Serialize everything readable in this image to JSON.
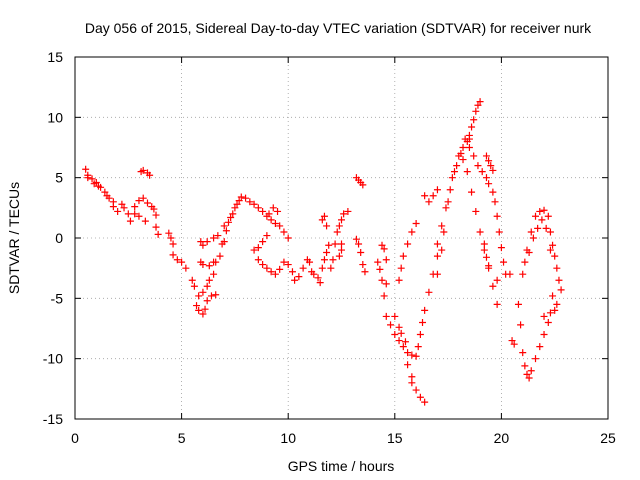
{
  "chart_data": {
    "type": "scatter",
    "title": "Day 056 of 2015, Sidereal Day-to-day VTEC variation (SDTVAR) for receiver nurk",
    "xlabel": "GPS time / hours",
    "ylabel": "SDTVAR / TECUs",
    "xlim": [
      0,
      25
    ],
    "ylim": [
      -15,
      15
    ],
    "xticks": [
      0,
      5,
      10,
      15,
      20,
      25
    ],
    "yticks": [
      -15,
      -10,
      -5,
      0,
      5,
      10,
      15
    ],
    "grid": true,
    "marker": "+",
    "color": "#ff0000",
    "series": [
      {
        "name": "SDTVAR",
        "points": [
          [
            0.5,
            5.7
          ],
          [
            0.6,
            5.2
          ],
          [
            0.8,
            4.9
          ],
          [
            1.0,
            4.6
          ],
          [
            1.2,
            4.2
          ],
          [
            1.4,
            3.8
          ],
          [
            1.6,
            3.3
          ],
          [
            1.8,
            2.6
          ],
          [
            2.0,
            2.2
          ],
          [
            0.6,
            5.0
          ],
          [
            0.9,
            4.5
          ],
          [
            1.1,
            4.3
          ],
          [
            1.5,
            3.5
          ],
          [
            1.8,
            3.0
          ],
          [
            2.2,
            2.8
          ],
          [
            2.3,
            2.5
          ],
          [
            2.5,
            2.0
          ],
          [
            2.6,
            1.4
          ],
          [
            2.8,
            2.6
          ],
          [
            3.0,
            3.1
          ],
          [
            3.2,
            3.3
          ],
          [
            3.4,
            2.9
          ],
          [
            3.6,
            2.6
          ],
          [
            3.1,
            5.5
          ],
          [
            3.2,
            5.6
          ],
          [
            3.4,
            5.4
          ],
          [
            3.5,
            5.2
          ],
          [
            2.8,
            2.0
          ],
          [
            3.0,
            1.8
          ],
          [
            3.3,
            1.4
          ],
          [
            3.7,
            2.4
          ],
          [
            3.8,
            1.9
          ],
          [
            3.8,
            0.9
          ],
          [
            3.9,
            0.3
          ],
          [
            4.4,
            0.4
          ],
          [
            4.5,
            0.0
          ],
          [
            4.6,
            -0.5
          ],
          [
            4.6,
            -1.4
          ],
          [
            4.8,
            -1.8
          ],
          [
            5.0,
            -2.0
          ],
          [
            5.2,
            -2.5
          ],
          [
            5.5,
            -3.5
          ],
          [
            5.6,
            -4.0
          ],
          [
            5.8,
            -4.8
          ],
          [
            5.7,
            -5.6
          ],
          [
            5.8,
            -6.0
          ],
          [
            6.0,
            -6.3
          ],
          [
            6.1,
            -5.9
          ],
          [
            6.2,
            -5.2
          ],
          [
            6.4,
            -4.8
          ],
          [
            6.6,
            -4.7
          ],
          [
            6.0,
            -4.5
          ],
          [
            6.2,
            -4.0
          ],
          [
            6.3,
            -3.5
          ],
          [
            6.5,
            -3.0
          ],
          [
            6.6,
            -2.0
          ],
          [
            6.8,
            -1.5
          ],
          [
            6.9,
            -0.5
          ],
          [
            7.0,
            -0.3
          ],
          [
            5.9,
            -0.3
          ],
          [
            6.0,
            -0.6
          ],
          [
            6.2,
            -0.3
          ],
          [
            6.5,
            0.0
          ],
          [
            6.7,
            0.2
          ],
          [
            5.9,
            -2.0
          ],
          [
            6.0,
            -2.2
          ],
          [
            6.3,
            -2.3
          ],
          [
            6.5,
            -2.0
          ],
          [
            7.0,
            1.0
          ],
          [
            7.1,
            0.6
          ],
          [
            7.2,
            1.3
          ],
          [
            7.3,
            1.7
          ],
          [
            7.4,
            2.0
          ],
          [
            7.5,
            2.5
          ],
          [
            7.6,
            2.8
          ],
          [
            7.7,
            3.1
          ],
          [
            7.8,
            3.4
          ],
          [
            8.0,
            3.3
          ],
          [
            8.2,
            3.0
          ],
          [
            8.4,
            2.8
          ],
          [
            8.6,
            2.5
          ],
          [
            8.8,
            2.2
          ],
          [
            9.0,
            1.8
          ],
          [
            9.2,
            1.5
          ],
          [
            9.4,
            1.2
          ],
          [
            9.6,
            1.0
          ],
          [
            9.8,
            0.5
          ],
          [
            10.0,
            0.0
          ],
          [
            9.5,
            2.2
          ],
          [
            9.3,
            2.5
          ],
          [
            9.1,
            2.0
          ],
          [
            9.0,
            0.2
          ],
          [
            8.8,
            -0.3
          ],
          [
            8.6,
            -0.8
          ],
          [
            8.4,
            -1.0
          ],
          [
            8.6,
            -1.8
          ],
          [
            8.8,
            -2.2
          ],
          [
            9.0,
            -2.5
          ],
          [
            9.2,
            -2.8
          ],
          [
            9.4,
            -3.0
          ],
          [
            9.6,
            -2.6
          ],
          [
            9.8,
            -2.0
          ],
          [
            10.0,
            -2.2
          ],
          [
            10.2,
            -2.8
          ],
          [
            10.3,
            -3.5
          ],
          [
            10.5,
            -3.2
          ],
          [
            10.7,
            -2.5
          ],
          [
            10.9,
            -1.8
          ],
          [
            11.0,
            -2.0
          ],
          [
            11.1,
            -2.8
          ],
          [
            11.2,
            -3.0
          ],
          [
            11.4,
            -3.3
          ],
          [
            11.5,
            -3.7
          ],
          [
            11.6,
            -2.5
          ],
          [
            11.7,
            -1.8
          ],
          [
            11.8,
            -1.2
          ],
          [
            11.9,
            -0.6
          ],
          [
            11.6,
            1.5
          ],
          [
            11.7,
            1.8
          ],
          [
            11.8,
            1.0
          ],
          [
            12.0,
            -2.5
          ],
          [
            12.1,
            -1.8
          ],
          [
            12.2,
            -0.5
          ],
          [
            12.3,
            0.5
          ],
          [
            12.4,
            1.0
          ],
          [
            12.5,
            1.5
          ],
          [
            12.6,
            2.0
          ],
          [
            12.8,
            2.2
          ],
          [
            12.4,
            -1.5
          ],
          [
            12.5,
            -1.0
          ],
          [
            12.5,
            -0.5
          ],
          [
            13.2,
            -0.1
          ],
          [
            13.3,
            -0.5
          ],
          [
            13.4,
            -1.2
          ],
          [
            13.5,
            -2.2
          ],
          [
            13.6,
            -2.8
          ],
          [
            13.2,
            5.0
          ],
          [
            13.3,
            4.8
          ],
          [
            13.4,
            4.6
          ],
          [
            13.5,
            4.4
          ],
          [
            14.2,
            -2.0
          ],
          [
            14.3,
            -2.6
          ],
          [
            14.4,
            -3.5
          ],
          [
            14.5,
            -4.8
          ],
          [
            14.6,
            -3.8
          ],
          [
            14.6,
            -1.8
          ],
          [
            14.5,
            -0.9
          ],
          [
            14.4,
            -0.6
          ],
          [
            14.6,
            -6.5
          ],
          [
            14.8,
            -7.2
          ],
          [
            15.0,
            -8.0
          ],
          [
            15.2,
            -8.5
          ],
          [
            15.4,
            -9.0
          ],
          [
            15.6,
            -9.5
          ],
          [
            15.8,
            -9.7
          ],
          [
            16.0,
            -9.8
          ],
          [
            16.1,
            -9.0
          ],
          [
            16.2,
            -8.0
          ],
          [
            16.3,
            -7.0
          ],
          [
            16.4,
            -6.0
          ],
          [
            16.6,
            -4.5
          ],
          [
            16.8,
            -3.0
          ],
          [
            17.0,
            -1.5
          ],
          [
            15.0,
            -6.5
          ],
          [
            15.2,
            -7.4
          ],
          [
            15.3,
            -7.9
          ],
          [
            15.5,
            -8.6
          ],
          [
            15.2,
            -3.5
          ],
          [
            15.3,
            -2.5
          ],
          [
            15.4,
            -1.5
          ],
          [
            15.6,
            -0.5
          ],
          [
            15.8,
            0.5
          ],
          [
            16.0,
            1.2
          ],
          [
            15.6,
            -10.5
          ],
          [
            15.8,
            -11.5
          ],
          [
            15.8,
            -12.0
          ],
          [
            16.0,
            -12.6
          ],
          [
            16.2,
            -13.2
          ],
          [
            16.4,
            -13.6
          ],
          [
            16.4,
            3.5
          ],
          [
            16.6,
            3.0
          ],
          [
            16.8,
            3.5
          ],
          [
            17.0,
            4.0
          ],
          [
            17.0,
            -0.5
          ],
          [
            17.2,
            1.0
          ],
          [
            17.4,
            2.5
          ],
          [
            17.6,
            4.0
          ],
          [
            17.8,
            5.5
          ],
          [
            18.0,
            6.8
          ],
          [
            18.2,
            7.5
          ],
          [
            18.4,
            8.0
          ],
          [
            17.0,
            -3.0
          ],
          [
            17.2,
            -1.0
          ],
          [
            17.3,
            0.5
          ],
          [
            17.5,
            3.0
          ],
          [
            17.7,
            5.0
          ],
          [
            17.9,
            6.0
          ],
          [
            18.1,
            7.0
          ],
          [
            18.5,
            8.5
          ],
          [
            18.6,
            9.2
          ],
          [
            18.8,
            10.5
          ],
          [
            19.0,
            11.3
          ],
          [
            18.9,
            11.0
          ],
          [
            18.7,
            9.8
          ],
          [
            18.5,
            8.2
          ],
          [
            18.2,
            6.5
          ],
          [
            18.4,
            5.5
          ],
          [
            18.6,
            3.8
          ],
          [
            18.8,
            2.2
          ],
          [
            19.0,
            0.5
          ],
          [
            19.2,
            -1.0
          ],
          [
            19.4,
            -2.5
          ],
          [
            19.6,
            -4.0
          ],
          [
            19.8,
            -5.5
          ],
          [
            18.3,
            8.2
          ],
          [
            18.5,
            7.5
          ],
          [
            18.7,
            6.8
          ],
          [
            18.9,
            6.0
          ],
          [
            19.1,
            5.5
          ],
          [
            19.3,
            5.0
          ],
          [
            19.4,
            4.5
          ],
          [
            19.6,
            3.8
          ],
          [
            19.7,
            3.0
          ],
          [
            19.8,
            1.8
          ],
          [
            19.9,
            0.5
          ],
          [
            20.0,
            -0.8
          ],
          [
            20.1,
            -2.0
          ],
          [
            20.2,
            -3.0
          ],
          [
            19.8,
            -3.5
          ],
          [
            19.3,
            6.8
          ],
          [
            19.4,
            6.4
          ],
          [
            19.5,
            6.0
          ],
          [
            19.6,
            5.6
          ],
          [
            19.2,
            -0.5
          ],
          [
            19.3,
            -1.6
          ],
          [
            19.4,
            -2.3
          ],
          [
            20.4,
            -3.0
          ],
          [
            20.5,
            -8.5
          ],
          [
            20.6,
            -8.8
          ],
          [
            20.8,
            -5.5
          ],
          [
            20.9,
            -7.2
          ],
          [
            21.0,
            -9.5
          ],
          [
            21.1,
            -10.6
          ],
          [
            21.2,
            -11.3
          ],
          [
            21.3,
            -11.6
          ],
          [
            21.4,
            -11.0
          ],
          [
            21.6,
            -10.0
          ],
          [
            21.8,
            -9.0
          ],
          [
            22.0,
            -8.0
          ],
          [
            22.2,
            -7.0
          ],
          [
            22.0,
            -6.5
          ],
          [
            21.0,
            -3.0
          ],
          [
            21.1,
            -2.0
          ],
          [
            21.2,
            -1.0
          ],
          [
            21.4,
            0.5
          ],
          [
            21.6,
            1.8
          ],
          [
            21.8,
            2.2
          ],
          [
            22.0,
            2.3
          ],
          [
            22.2,
            1.8
          ],
          [
            22.3,
            0.5
          ],
          [
            22.4,
            -0.6
          ],
          [
            22.5,
            -1.5
          ],
          [
            22.6,
            -2.5
          ],
          [
            22.7,
            -3.5
          ],
          [
            22.8,
            -4.3
          ],
          [
            21.3,
            -1.2
          ],
          [
            21.5,
            0.0
          ],
          [
            21.7,
            0.8
          ],
          [
            21.9,
            1.5
          ],
          [
            22.1,
            0.8
          ],
          [
            22.3,
            -1.0
          ],
          [
            22.6,
            -5.5
          ],
          [
            22.5,
            -6.0
          ],
          [
            22.3,
            -6.2
          ],
          [
            22.4,
            -4.8
          ]
        ]
      }
    ]
  }
}
